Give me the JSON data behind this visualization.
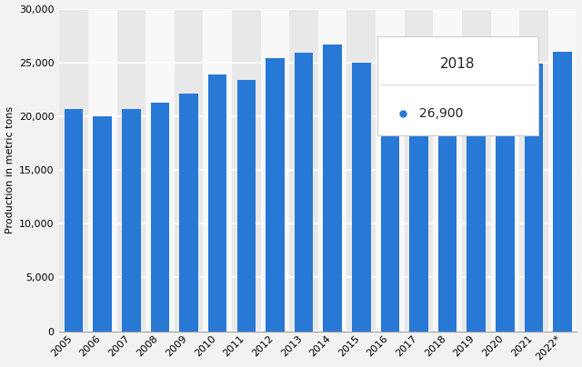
{
  "years": [
    "2005",
    "2006",
    "2007",
    "2008",
    "2009",
    "2010",
    "2011",
    "2012",
    "2013",
    "2014",
    "2015",
    "2016",
    "2017",
    "2018",
    "2019",
    "2020",
    "2021",
    "2022*"
  ],
  "values": [
    20700,
    20000,
    20700,
    21300,
    22100,
    23900,
    23400,
    25400,
    25900,
    26700,
    25000,
    18500,
    26700,
    26900,
    26200,
    18700,
    24900,
    26000
  ],
  "bar_color": "#2878d6",
  "ylabel": "Production in metric tons",
  "ylim": [
    0,
    30000
  ],
  "yticks": [
    0,
    5000,
    10000,
    15000,
    20000,
    25000,
    30000
  ],
  "bg_color": "#f2f2f2",
  "stripe_colors": [
    "#e8e8e8",
    "#f8f8f8"
  ],
  "grid_color": "#ffffff",
  "tooltip_year": "2018",
  "tooltip_value": "26,900",
  "tooltip_bar_index": 13
}
